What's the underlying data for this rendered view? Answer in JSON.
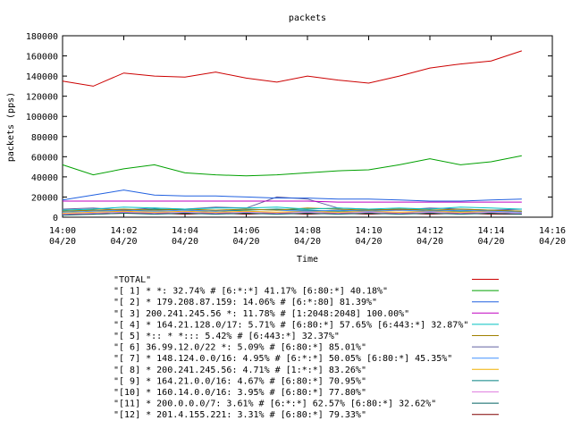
{
  "chart_data": {
    "type": "line",
    "title": "packets",
    "xlabel": "Time",
    "ylabel": "packets (pps)",
    "xlim": [
      "04/20 14:00",
      "04/20 14:16"
    ],
    "ylim": [
      0,
      180000
    ],
    "y_ticks": [
      "0",
      "20000",
      "40000",
      "60000",
      "80000",
      "100000",
      "120000",
      "140000",
      "160000",
      "180000"
    ],
    "x_ticks": [
      {
        "time": "14:00",
        "date": "04/20"
      },
      {
        "time": "14:02",
        "date": "04/20"
      },
      {
        "time": "14:04",
        "date": "04/20"
      },
      {
        "time": "14:06",
        "date": "04/20"
      },
      {
        "time": "14:08",
        "date": "04/20"
      },
      {
        "time": "14:10",
        "date": "04/20"
      },
      {
        "time": "14:12",
        "date": "04/20"
      },
      {
        "time": "14:14",
        "date": "04/20"
      },
      {
        "time": "14:16",
        "date": "04/20"
      }
    ],
    "grid": false,
    "legend_position": "bottom",
    "series": [
      {
        "name": "\"TOTAL\"",
        "color": "#cc0000",
        "x": [
          "14:00",
          "14:01",
          "14:02",
          "14:03",
          "14:04",
          "14:05",
          "14:06",
          "14:07",
          "14:08",
          "14:09",
          "14:10",
          "14:11",
          "14:12",
          "14:13",
          "14:14",
          "14:15"
        ],
        "values": [
          135000,
          130000,
          143000,
          140000,
          139000,
          144000,
          138000,
          134000,
          140000,
          136000,
          133000,
          140000,
          148000,
          152000,
          155000,
          165000
        ]
      },
      {
        "name": "\"[ 1] * *: 32.74% # [6:*:*] 41.17% [6:80:*] 40.18%\"",
        "color": "#00a000",
        "x": [
          "14:00",
          "14:01",
          "14:02",
          "14:03",
          "14:04",
          "14:05",
          "14:06",
          "14:07",
          "14:08",
          "14:09",
          "14:10",
          "14:11",
          "14:12",
          "14:13",
          "14:14",
          "14:15"
        ],
        "values": [
          52000,
          42000,
          48000,
          52000,
          44000,
          42000,
          41000,
          42000,
          44000,
          46000,
          47000,
          52000,
          58000,
          52000,
          55000,
          61000
        ]
      },
      {
        "name": "\"[ 2] * 179.208.87.159: 14.06% # [6:*:80] 81.39%\"",
        "color": "#2060e0",
        "x": [
          "14:00",
          "14:01",
          "14:02",
          "14:03",
          "14:04",
          "14:05",
          "14:06",
          "14:07",
          "14:08",
          "14:09",
          "14:10",
          "14:11",
          "14:12",
          "14:13",
          "14:14",
          "14:15"
        ],
        "values": [
          17000,
          22000,
          27000,
          22000,
          21000,
          21000,
          20000,
          19000,
          19000,
          18000,
          18000,
          17000,
          16000,
          16000,
          17000,
          18000
        ]
      },
      {
        "name": "\"[ 3] 200.241.245.56 *: 11.78% # [1:2048:2048] 100.00%\"",
        "color": "#c000c0",
        "x": [
          "14:00",
          "14:01",
          "14:02",
          "14:03",
          "14:04",
          "14:05",
          "14:06",
          "14:07",
          "14:08",
          "14:09",
          "14:10",
          "14:11",
          "14:12",
          "14:13",
          "14:14",
          "14:15"
        ],
        "values": [
          16000,
          16000,
          16000,
          16000,
          16000,
          16000,
          16000,
          16000,
          16000,
          15000,
          15000,
          15000,
          15000,
          15000,
          15000,
          15000
        ]
      },
      {
        "name": "\"[ 4] * 164.21.128.0/17: 5.71% # [6:80:*] 57.65% [6:443:*] 32.87%\"",
        "color": "#00c0c0",
        "x": [
          "14:00",
          "14:01",
          "14:02",
          "14:03",
          "14:04",
          "14:05",
          "14:06",
          "14:07",
          "14:08",
          "14:09",
          "14:10",
          "14:11",
          "14:12",
          "14:13",
          "14:14",
          "14:15"
        ],
        "values": [
          7000,
          8000,
          10000,
          9000,
          8000,
          9000,
          9000,
          10000,
          8000,
          9000,
          8000,
          9000,
          8000,
          10000,
          9000,
          8000
        ]
      },
      {
        "name": "\"[ 5] *:: * *::: 5.42% # [6:443:*] 32.37%\"",
        "color": "#a08000",
        "x": [
          "14:00",
          "14:01",
          "14:02",
          "14:03",
          "14:04",
          "14:05",
          "14:06",
          "14:07",
          "14:08",
          "14:09",
          "14:10",
          "14:11",
          "14:12",
          "14:13",
          "14:14",
          "14:15"
        ],
        "values": [
          6000,
          7000,
          8000,
          7000,
          8000,
          7000,
          8000,
          7000,
          9000,
          8000,
          7000,
          8000,
          7000,
          8000,
          7000,
          6000
        ]
      },
      {
        "name": "\"[ 6] 36.99.12.0/22 *: 5.09% # [6:80:*] 85.01%\"",
        "color": "#6060a0",
        "x": [
          "14:00",
          "14:01",
          "14:02",
          "14:03",
          "14:04",
          "14:05",
          "14:06",
          "14:07",
          "14:08",
          "14:09",
          "14:10",
          "14:11",
          "14:12",
          "14:13",
          "14:14",
          "14:15"
        ],
        "values": [
          8000,
          9000,
          7000,
          9000,
          8000,
          10000,
          9000,
          20000,
          18000,
          9000,
          8000,
          7000,
          9000,
          8000,
          7000,
          8000
        ]
      },
      {
        "name": "\"[ 7] * 148.124.0.0/16: 4.95% # [6:*:*] 50.05% [6:80:*] 45.35%\"",
        "color": "#4090ff",
        "x": [
          "14:00",
          "14:01",
          "14:02",
          "14:03",
          "14:04",
          "14:05",
          "14:06",
          "14:07",
          "14:08",
          "14:09",
          "14:10",
          "14:11",
          "14:12",
          "14:13",
          "14:14",
          "14:15"
        ],
        "values": [
          5000,
          6000,
          7000,
          6000,
          7000,
          6000,
          8000,
          7000,
          6000,
          7000,
          6000,
          7000,
          6000,
          7000,
          6000,
          5000
        ]
      },
      {
        "name": "\"[ 8] * 200.241.245.56: 4.71% # [1:*:*] 83.26%\"",
        "color": "#f0b000",
        "x": [
          "14:00",
          "14:01",
          "14:02",
          "14:03",
          "14:04",
          "14:05",
          "14:06",
          "14:07",
          "14:08",
          "14:09",
          "14:10",
          "14:11",
          "14:12",
          "14:13",
          "14:14",
          "14:15"
        ],
        "values": [
          4000,
          5000,
          6000,
          5000,
          6000,
          5000,
          6000,
          5000,
          6000,
          5000,
          6000,
          5000,
          6000,
          5000,
          6000,
          5000
        ]
      },
      {
        "name": "\"[ 9] * 164.21.0.0/16: 4.67% # [6:80:*] 70.95%\"",
        "color": "#008080",
        "x": [
          "14:00",
          "14:01",
          "14:02",
          "14:03",
          "14:04",
          "14:05",
          "14:06",
          "14:07",
          "14:08",
          "14:09",
          "14:10",
          "14:11",
          "14:12",
          "14:13",
          "14:14",
          "14:15"
        ],
        "values": [
          6000,
          7000,
          6000,
          8000,
          7000,
          6000,
          7000,
          8000,
          7000,
          6000,
          7000,
          8000,
          7000,
          6000,
          7000,
          6000
        ]
      },
      {
        "name": "\"[10] * 160.14.0.0/16: 3.95% # [6:80:*] 77.80%\"",
        "color": "#e080e0",
        "x": [
          "14:00",
          "14:01",
          "14:02",
          "14:03",
          "14:04",
          "14:05",
          "14:06",
          "14:07",
          "14:08",
          "14:09",
          "14:10",
          "14:11",
          "14:12",
          "14:13",
          "14:14",
          "14:15"
        ],
        "values": [
          3000,
          4000,
          5000,
          4000,
          5000,
          4000,
          5000,
          4000,
          5000,
          4000,
          5000,
          4000,
          5000,
          4000,
          5000,
          4000
        ]
      },
      {
        "name": "\"[11] * 200.0.0.0/7: 3.61% # [6:*:*] 62.57% [6:80:*] 32.62%\"",
        "color": "#006060",
        "x": [
          "14:00",
          "14:01",
          "14:02",
          "14:03",
          "14:04",
          "14:05",
          "14:06",
          "14:07",
          "14:08",
          "14:09",
          "14:10",
          "14:11",
          "14:12",
          "14:13",
          "14:14",
          "14:15"
        ],
        "values": [
          2000,
          3000,
          4000,
          3000,
          4000,
          3000,
          4000,
          3000,
          4000,
          3000,
          4000,
          3000,
          4000,
          3000,
          4000,
          3000
        ]
      },
      {
        "name": "\"[12] * 201.4.155.221: 3.31% # [6:80:*] 79.33%\"",
        "color": "#800000",
        "x": [
          "14:00",
          "14:01",
          "14:02",
          "14:03",
          "14:04",
          "14:05",
          "14:06",
          "14:07",
          "14:08",
          "14:09",
          "14:10",
          "14:11",
          "14:12",
          "14:13",
          "14:14",
          "14:15"
        ],
        "values": [
          3000,
          3000,
          4000,
          4000,
          3000,
          4000,
          3000,
          4000,
          3000,
          4000,
          3000,
          4000,
          3000,
          4000,
          3000,
          3000
        ]
      }
    ]
  }
}
